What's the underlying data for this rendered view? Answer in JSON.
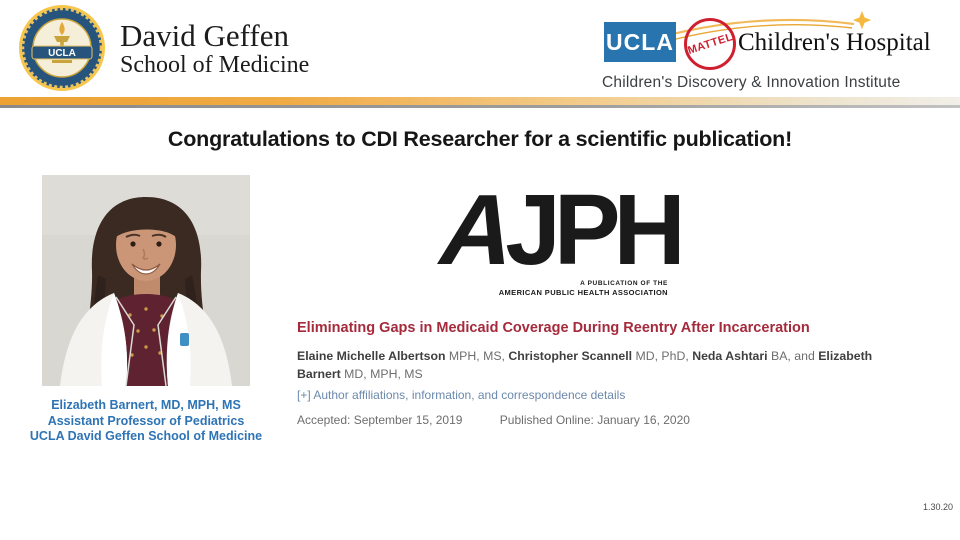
{
  "header": {
    "dgsom": {
      "seal_label": "UCLA",
      "wordmark_line1": "David Geffen",
      "wordmark_line2": "School of Medicine"
    },
    "childrens": {
      "ucla_box_label": "UCLA",
      "mattel_label": "MATTEL",
      "hospital_name": "Children's Hospital",
      "institute_name": "Children's Discovery & Innovation Institute"
    }
  },
  "title": "Congratulations to CDI Researcher for a scientific publication!",
  "researcher_caption": {
    "line1": "Elizabeth Barnert, MD, MPH, MS",
    "line2": "Assistant Professor of Pediatrics",
    "line3": "UCLA David Geffen School of Medicine"
  },
  "publication": {
    "journal_logo_a": "A",
    "journal_logo_rest": "JPH",
    "journal_sub_line1": "A PUBLICATION OF THE",
    "journal_sub_line2": "AMERICAN PUBLIC HEALTH ASSOCIATION",
    "article_title": "Eliminating Gaps in Medicaid Coverage During Reentry After Incarceration",
    "authors_segments": [
      {
        "t": "Elaine Michelle Albertson",
        "b": true
      },
      {
        "t": " MPH, MS, ",
        "b": false
      },
      {
        "t": "Christopher Scannell",
        "b": true
      },
      {
        "t": " MD, PhD, ",
        "b": false
      },
      {
        "t": "Neda Ashtari",
        "b": true
      },
      {
        "t": " BA, and ",
        "b": false
      },
      {
        "t": "Elizabeth Barnert",
        "b": true
      },
      {
        "t": " MD, MPH, MS",
        "b": false
      }
    ],
    "affiliations_link": "[+] Author affiliations, information, and correspondence details",
    "accepted": "Accepted: September 15, 2019",
    "published_online": "Published Online: January 16, 2020"
  },
  "footer": {
    "date": "1.30.20"
  },
  "colors": {
    "accent_gold": "#EFA73E",
    "article_red": "#A42A3C",
    "caption_blue": "#2E74B5",
    "link_blue": "#6B89AD",
    "ucla_blue": "#2774AE",
    "mattel_red": "#CF2030",
    "title_black": "#161616"
  }
}
